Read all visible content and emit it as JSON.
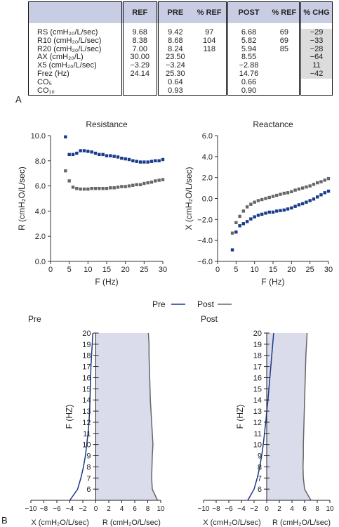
{
  "panel_labels": {
    "a": "A",
    "b": "B"
  },
  "table": {
    "headers": [
      "",
      "REF",
      "PRE",
      "% REF",
      "POST",
      "% REF",
      "% CHG"
    ],
    "rows": [
      {
        "label": "RS (cmH₂₀/L/sec)",
        "ref": "9.68",
        "pre": "9.42",
        "pre_pct": "97",
        "post": "6.68",
        "post_pct": "69",
        "chg": "−29"
      },
      {
        "label": "R10 (cmH₂₀/L/sec)",
        "ref": "8.38",
        "pre": "8.68",
        "pre_pct": "104",
        "post": "5.82",
        "post_pct": "69",
        "chg": "−33"
      },
      {
        "label": "R20 (cmH₂₀/L/sec)",
        "ref": "7.00",
        "pre": "8.24",
        "pre_pct": "118",
        "post": "5.94",
        "post_pct": "85",
        "chg": "−28"
      },
      {
        "label": "AX (cmH₂₀/L)",
        "ref": "30.00",
        "pre": "23.50",
        "pre_pct": "",
        "post": "8.55",
        "post_pct": "",
        "chg": "−64"
      },
      {
        "label": "X5 (cmH₂₀/L/sec)",
        "ref": "−3.29",
        "pre": "−3.24",
        "pre_pct": "",
        "post": "−2.88",
        "post_pct": "",
        "chg": "11"
      },
      {
        "label": "Frez (Hz)",
        "ref": "24.14",
        "pre": "25.30",
        "pre_pct": "",
        "post": "14.76",
        "post_pct": "",
        "chg": "−42"
      },
      {
        "label": "CO₅",
        "ref": "",
        "pre": "0.64",
        "pre_pct": "",
        "post": "0.66",
        "post_pct": "",
        "chg": ""
      },
      {
        "label": "CO₁₀",
        "ref": "",
        "pre": "0.93",
        "pre_pct": "",
        "post": "0.90",
        "post_pct": "",
        "chg": ""
      }
    ]
  },
  "legend": {
    "pre": "Pre",
    "post": "Post"
  },
  "colors": {
    "pre": "#1a3a8a",
    "post": "#666666",
    "fill": "#dadcec"
  },
  "chart_data": [
    {
      "type": "scatter",
      "title": "Resistance",
      "xlabel": "F (Hz)",
      "ylabel": "R (cmH₂O/L/sec)",
      "xlim": [
        0,
        30
      ],
      "ylim": [
        0,
        10
      ],
      "xticks": [
        "0",
        "5",
        "10",
        "15",
        "20",
        "25",
        "30"
      ],
      "yticks": [
        "0.0",
        "2.0",
        "4.0",
        "6.0",
        "8.0",
        "10.0"
      ],
      "series": [
        {
          "name": "Pre",
          "color": "#1a3a8a",
          "x": [
            4,
            5,
            6,
            7,
            8,
            9,
            10,
            11,
            12,
            13,
            14,
            15,
            16,
            17,
            18,
            19,
            20,
            21,
            22,
            23,
            24,
            25,
            26,
            27,
            28,
            29,
            30
          ],
          "y": [
            9.9,
            8.5,
            8.5,
            8.6,
            8.8,
            8.8,
            8.75,
            8.7,
            8.6,
            8.5,
            8.5,
            8.4,
            8.4,
            8.35,
            8.3,
            8.2,
            8.15,
            8.1,
            8.0,
            7.95,
            7.9,
            7.9,
            7.9,
            7.95,
            8.0,
            8.0,
            8.1
          ]
        },
        {
          "name": "Post",
          "color": "#666666",
          "x": [
            4,
            5,
            6,
            7,
            8,
            9,
            10,
            11,
            12,
            13,
            14,
            15,
            16,
            17,
            18,
            19,
            20,
            21,
            22,
            23,
            24,
            25,
            26,
            27,
            28,
            29,
            30
          ],
          "y": [
            7.2,
            6.4,
            5.9,
            5.8,
            5.75,
            5.75,
            5.75,
            5.8,
            5.8,
            5.8,
            5.8,
            5.8,
            5.85,
            5.85,
            5.9,
            5.95,
            5.95,
            6.0,
            6.05,
            6.1,
            6.1,
            6.2,
            6.25,
            6.3,
            6.4,
            6.45,
            6.5
          ]
        }
      ]
    },
    {
      "type": "scatter",
      "title": "Reactance",
      "xlabel": "F (Hz)",
      "ylabel": "X (cmH₂O/L/sec)",
      "xlim": [
        0,
        30
      ],
      "ylim": [
        -6,
        6
      ],
      "xticks": [
        "0",
        "5",
        "10",
        "15",
        "20",
        "25",
        "30"
      ],
      "yticks": [
        "−6.0",
        "−4.0",
        "−2.0",
        "0.0",
        "2.0",
        "4.0",
        "6.0"
      ],
      "series": [
        {
          "name": "Pre",
          "color": "#1a3a8a",
          "x": [
            4,
            5,
            6,
            7,
            8,
            9,
            10,
            11,
            12,
            13,
            14,
            15,
            16,
            17,
            18,
            19,
            20,
            21,
            22,
            23,
            24,
            25,
            26,
            27,
            28,
            29,
            30
          ],
          "y": [
            -4.9,
            -3.2,
            -2.6,
            -2.4,
            -2.2,
            -1.95,
            -1.75,
            -1.6,
            -1.5,
            -1.4,
            -1.3,
            -1.3,
            -1.2,
            -1.15,
            -1.1,
            -1.0,
            -0.9,
            -0.75,
            -0.6,
            -0.5,
            -0.35,
            -0.2,
            -0.05,
            0.15,
            0.35,
            0.55,
            0.7
          ]
        },
        {
          "name": "Post",
          "color": "#666666",
          "x": [
            4,
            5,
            6,
            7,
            8,
            9,
            10,
            11,
            12,
            13,
            14,
            15,
            16,
            17,
            18,
            19,
            20,
            21,
            22,
            23,
            24,
            25,
            26,
            27,
            28,
            29,
            30
          ],
          "y": [
            -3.3,
            -2.3,
            -1.7,
            -1.2,
            -0.8,
            -0.55,
            -0.35,
            -0.2,
            -0.1,
            0.0,
            0.1,
            0.2,
            0.3,
            0.4,
            0.5,
            0.55,
            0.65,
            0.8,
            0.9,
            1.0,
            1.1,
            1.2,
            1.35,
            1.5,
            1.6,
            1.75,
            1.9
          ]
        }
      ]
    },
    {
      "type": "area",
      "title": "Pre",
      "xlabel_left": "X (cmH₂O/L/sec)",
      "xlabel_right": "R (cmH₂O/L/sec)",
      "ylabel": "F (HZ)",
      "xlim": [
        -10,
        10
      ],
      "ylim": [
        5,
        20
      ],
      "xticks": [
        "−10",
        "−8",
        "−6",
        "−4",
        "−2",
        "0",
        "2",
        "4",
        "6",
        "8",
        "10"
      ],
      "yticks": [
        "6",
        "7",
        "8",
        "9",
        "10",
        "11",
        "12",
        "13",
        "14",
        "15",
        "16",
        "17",
        "18",
        "19",
        "20"
      ],
      "series": [
        {
          "name": "X",
          "color": "#1a3a8a",
          "f": [
            5,
            6,
            7,
            8,
            9,
            10,
            11,
            12,
            13,
            14,
            15,
            16,
            17,
            18,
            19,
            20
          ],
          "values": [
            -4.0,
            -2.8,
            -2.3,
            -1.9,
            -1.6,
            -1.4,
            -1.2,
            -1.05,
            -0.95,
            -0.9,
            -0.85,
            -0.8,
            -0.75,
            -0.65,
            -0.55,
            -0.45
          ]
        },
        {
          "name": "R",
          "color": "#666666",
          "f": [
            5,
            6,
            7,
            8,
            9,
            10,
            11,
            12,
            13,
            14,
            15,
            16,
            17,
            18,
            19,
            20
          ],
          "values": [
            9.5,
            8.7,
            8.6,
            8.65,
            8.7,
            8.8,
            8.7,
            8.6,
            8.5,
            8.4,
            8.35,
            8.3,
            8.25,
            8.2,
            8.2,
            8.1
          ]
        }
      ]
    },
    {
      "type": "area",
      "title": "Post",
      "xlabel_left": "X (cmH₂O/L/sec)",
      "xlabel_right": "R (cmH₂O/L/sec)",
      "ylabel": "F (HZ)",
      "xlim": [
        -10,
        10
      ],
      "ylim": [
        5,
        20
      ],
      "xticks": [
        "−10",
        "−8",
        "−6",
        "−4",
        "−2",
        "0",
        "2",
        "4",
        "6",
        "8",
        "10"
      ],
      "yticks": [
        "6",
        "7",
        "8",
        "9",
        "10",
        "11",
        "12",
        "13",
        "14",
        "15",
        "16",
        "17",
        "18",
        "19",
        "20"
      ],
      "series": [
        {
          "name": "X",
          "color": "#1a3a8a",
          "f": [
            5,
            6,
            7,
            8,
            9,
            10,
            11,
            12,
            13,
            14,
            15,
            16,
            17,
            18,
            19,
            20
          ],
          "values": [
            -3.0,
            -2.0,
            -1.5,
            -1.1,
            -0.8,
            -0.55,
            -0.35,
            -0.15,
            0.0,
            0.2,
            0.35,
            0.5,
            0.65,
            0.8,
            0.95,
            1.1
          ]
        },
        {
          "name": "R",
          "color": "#666666",
          "f": [
            5,
            6,
            7,
            8,
            9,
            10,
            11,
            12,
            13,
            14,
            15,
            16,
            17,
            18,
            19,
            20
          ],
          "values": [
            7.0,
            6.0,
            5.8,
            5.75,
            5.8,
            5.8,
            5.85,
            5.9,
            5.95,
            6.0,
            6.05,
            6.1,
            6.15,
            6.2,
            6.3,
            6.4
          ]
        }
      ]
    }
  ]
}
